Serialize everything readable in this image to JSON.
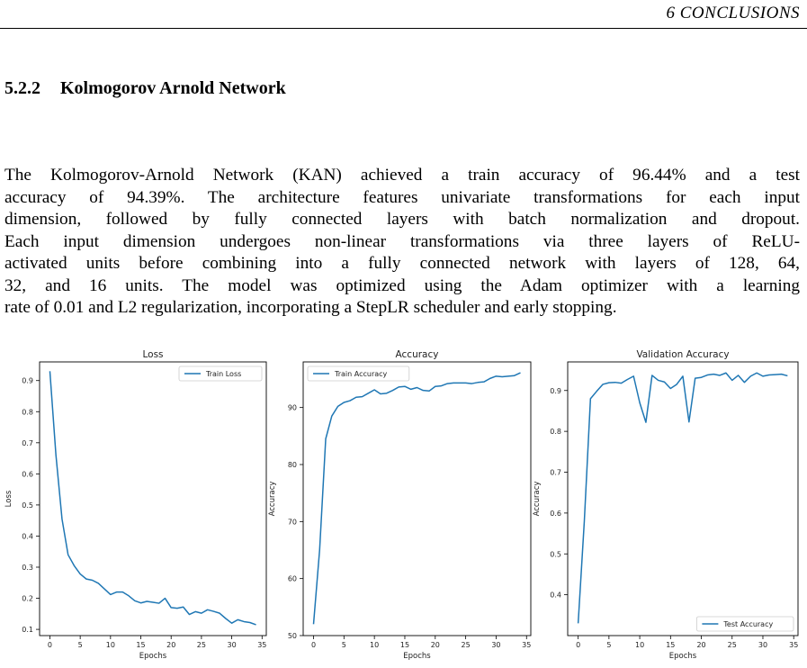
{
  "running_head": "6   CONCLUSIONS",
  "section": {
    "number": "5.2.2",
    "title": "Kolmogorov Arnold Network"
  },
  "paragraph_lines": [
    "The Kolmogorov-Arnold Network (KAN) achieved a train accuracy of 96.44% and a test",
    "accuracy of 94.39%. The architecture features univariate transformations for each input",
    "dimension, followed by fully connected layers with batch normalization and dropout.",
    "Each input dimension undergoes non-linear transformations via three layers of ReLU-",
    "activated units before combining into a fully connected network with layers of 128, 64,",
    "32, and 16 units. The model was optimized using the Adam optimizer with a learning",
    "rate of 0.01 and L2 regularization, incorporating a StepLR scheduler and early stopping."
  ],
  "colors": {
    "line": "#1f77b4"
  },
  "chart_data": [
    {
      "type": "line",
      "title": "Loss",
      "xlabel": "Epochs",
      "ylabel": "Loss",
      "xlim": [
        -1.7,
        35.7
      ],
      "ylim": [
        0.08,
        0.96
      ],
      "xticks": [
        0,
        5,
        10,
        15,
        20,
        25,
        30,
        35
      ],
      "yticks": [
        0.1,
        0.2,
        0.3,
        0.4,
        0.5,
        0.6,
        0.7,
        0.8,
        0.9
      ],
      "legend": "upper-right",
      "series": [
        {
          "name": "Train Loss",
          "x": [
            0,
            1,
            2,
            3,
            4,
            5,
            6,
            7,
            8,
            9,
            10,
            11,
            12,
            13,
            14,
            15,
            16,
            17,
            18,
            19,
            20,
            21,
            22,
            23,
            24,
            25,
            26,
            27,
            28,
            29,
            30,
            31,
            32,
            33,
            34
          ],
          "y": [
            0.93,
            0.66,
            0.455,
            0.34,
            0.305,
            0.278,
            0.262,
            0.258,
            0.248,
            0.23,
            0.212,
            0.22,
            0.22,
            0.208,
            0.192,
            0.185,
            0.19,
            0.187,
            0.184,
            0.2,
            0.17,
            0.168,
            0.172,
            0.148,
            0.157,
            0.152,
            0.163,
            0.158,
            0.152,
            0.135,
            0.12,
            0.131,
            0.125,
            0.122,
            0.115
          ]
        }
      ]
    },
    {
      "type": "line",
      "title": "Accuracy",
      "xlabel": "Epochs",
      "ylabel": "Accuracy",
      "xlim": [
        -1.7,
        35.7
      ],
      "ylim": [
        50,
        98
      ],
      "xticks": [
        0,
        5,
        10,
        15,
        20,
        25,
        30,
        35
      ],
      "yticks": [
        50,
        60,
        70,
        80,
        90
      ],
      "legend": "upper-left",
      "series": [
        {
          "name": "Train Accuracy",
          "x": [
            0,
            1,
            2,
            3,
            4,
            5,
            6,
            7,
            8,
            9,
            10,
            11,
            12,
            13,
            14,
            15,
            16,
            17,
            18,
            19,
            20,
            21,
            22,
            23,
            24,
            25,
            26,
            27,
            28,
            29,
            30,
            31,
            32,
            33,
            34
          ],
          "y": [
            52,
            65,
            84.5,
            88.5,
            90.2,
            90.9,
            91.2,
            91.8,
            91.9,
            92.5,
            93.1,
            92.4,
            92.5,
            93,
            93.6,
            93.7,
            93.2,
            93.5,
            93,
            92.9,
            93.7,
            93.8,
            94.2,
            94.3,
            94.3,
            94.3,
            94.2,
            94.4,
            94.5,
            95.1,
            95.5,
            95.4,
            95.5,
            95.6,
            96.1
          ]
        }
      ]
    },
    {
      "type": "line",
      "title": "Validation Accuracy",
      "xlabel": "Epochs",
      "ylabel": "Accuracy",
      "xlim": [
        -1.7,
        35.7
      ],
      "ylim": [
        0.3,
        0.97
      ],
      "xticks": [
        0,
        5,
        10,
        15,
        20,
        25,
        30,
        35
      ],
      "yticks": [
        0.4,
        0.5,
        0.6,
        0.7,
        0.8,
        0.9
      ],
      "legend": "lower-right",
      "series": [
        {
          "name": "Test Accuracy",
          "x": [
            0,
            1,
            2,
            3,
            4,
            5,
            6,
            7,
            8,
            9,
            10,
            11,
            12,
            13,
            14,
            15,
            16,
            17,
            18,
            19,
            20,
            21,
            22,
            23,
            24,
            25,
            26,
            27,
            28,
            29,
            30,
            31,
            32,
            33,
            34
          ],
          "y": [
            0.33,
            0.58,
            0.88,
            0.898,
            0.915,
            0.919,
            0.92,
            0.918,
            0.927,
            0.935,
            0.87,
            0.822,
            0.937,
            0.925,
            0.921,
            0.905,
            0.915,
            0.935,
            0.823,
            0.93,
            0.932,
            0.938,
            0.94,
            0.937,
            0.943,
            0.925,
            0.937,
            0.92,
            0.935,
            0.943,
            0.935,
            0.938,
            0.939,
            0.94,
            0.936
          ]
        }
      ]
    }
  ]
}
